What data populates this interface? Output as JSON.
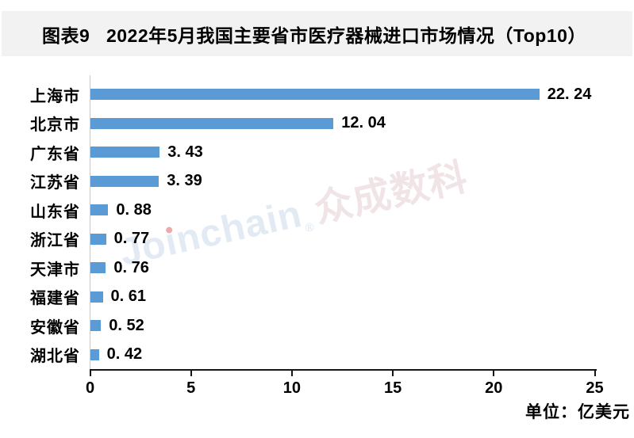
{
  "header": {
    "title": "图表9   2022年5月我国主要省市医疗器械进口市场情况（Top10）"
  },
  "chart_data": {
    "type": "bar",
    "orientation": "horizontal",
    "title": "图表9   2022年5月我国主要省市医疗器械进口市场情况（Top10）",
    "categories": [
      "上海市",
      "北京市",
      "广东省",
      "江苏省",
      "山东省",
      "浙江省",
      "天津市",
      "福建省",
      "安徽省",
      "湖北省"
    ],
    "values": [
      22.24,
      12.04,
      3.43,
      3.39,
      0.88,
      0.77,
      0.76,
      0.61,
      0.52,
      0.42
    ],
    "data_labels": [
      "22. 24",
      "12. 04",
      "3. 43",
      "3. 39",
      "0. 88",
      "0. 77",
      "0. 76",
      "0. 61",
      "0. 52",
      "0. 42"
    ],
    "xlabel": "",
    "ylabel": "",
    "xlim": [
      0,
      25
    ],
    "x_ticks": [
      0,
      5,
      10,
      15,
      20,
      25
    ],
    "x_tick_labels": [
      "0",
      "5",
      "10",
      "15",
      "20",
      "25"
    ],
    "unit_label": "单位：亿美元",
    "bar_color": "#5B9BD5",
    "grid": "off",
    "legend": "none"
  },
  "watermark": {
    "full_text": "Joinchain®众成数科",
    "latin_p1": "Jo",
    "latin_i_stem": "ı",
    "latin_p2": "nchain",
    "reg_mark": "®",
    "cjk": "众成数科"
  },
  "colors": {
    "bar": "#5B9BD5",
    "title_band_bg": "#F2F2F2",
    "axis_line": "#161616",
    "category_axis_line": "#C9C9C9",
    "watermark_latin": "#E2EAF4",
    "watermark_cjk": "#F0E4E6",
    "watermark_dot": "#EFA9A9"
  }
}
